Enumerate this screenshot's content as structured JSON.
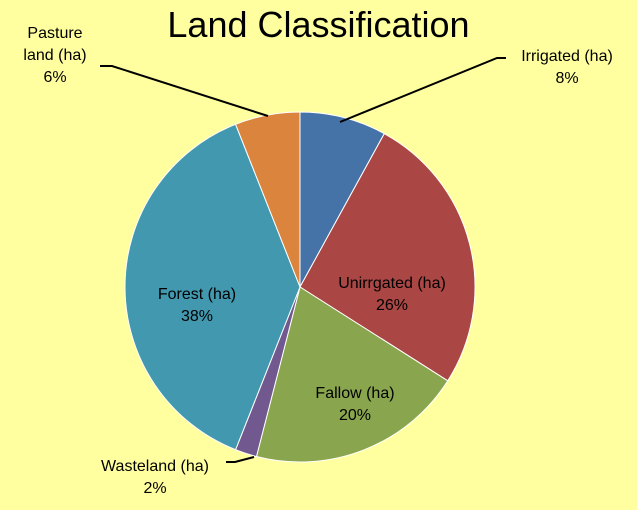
{
  "chart_data": {
    "type": "pie",
    "title": "Land Classification",
    "categories": [
      "Irrigated (ha)",
      "Unirrgated (ha)",
      "Fallow (ha)",
      "Wasteland (ha)",
      "Forest (ha)",
      "Pasture land (ha)"
    ],
    "values": [
      8,
      26,
      20,
      2,
      38,
      6
    ],
    "value_labels": [
      "8%",
      "26%",
      "20%",
      "2%",
      "38%",
      "6%"
    ],
    "colors": [
      "#4572A7",
      "#AA4643",
      "#89A54E",
      "#71588F",
      "#4198AF",
      "#DB843D"
    ]
  }
}
